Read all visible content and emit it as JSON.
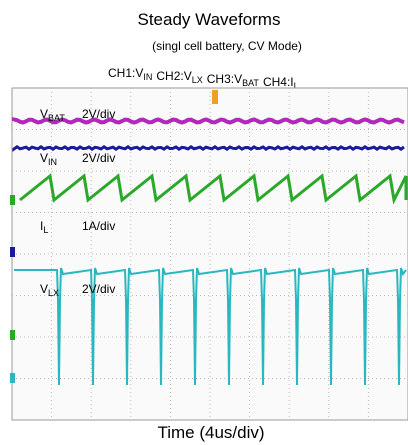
{
  "header": {
    "title": "Steady Waveforms",
    "subtitle": "(singl cell battery, CV Mode)"
  },
  "channels": [
    {
      "label": "CH1:",
      "symbol": "V",
      "sub": "IN"
    },
    {
      "label": "CH2:",
      "symbol": "V",
      "sub": "LX"
    },
    {
      "label": "CH3:",
      "symbol": "V",
      "sub": "BAT"
    },
    {
      "label": "CH4:",
      "symbol": "I",
      "sub": "L"
    }
  ],
  "traces": [
    {
      "symbol": "V",
      "sub": "BAT",
      "scale": "2V/div"
    },
    {
      "symbol": "V",
      "sub": "IN",
      "scale": "2V/div"
    },
    {
      "symbol": "I",
      "sub": "L",
      "scale": "1A/div"
    },
    {
      "symbol": "V",
      "sub": "LX",
      "scale": "2V/div"
    }
  ],
  "x_axis_label": "Time (4us/div)"
}
